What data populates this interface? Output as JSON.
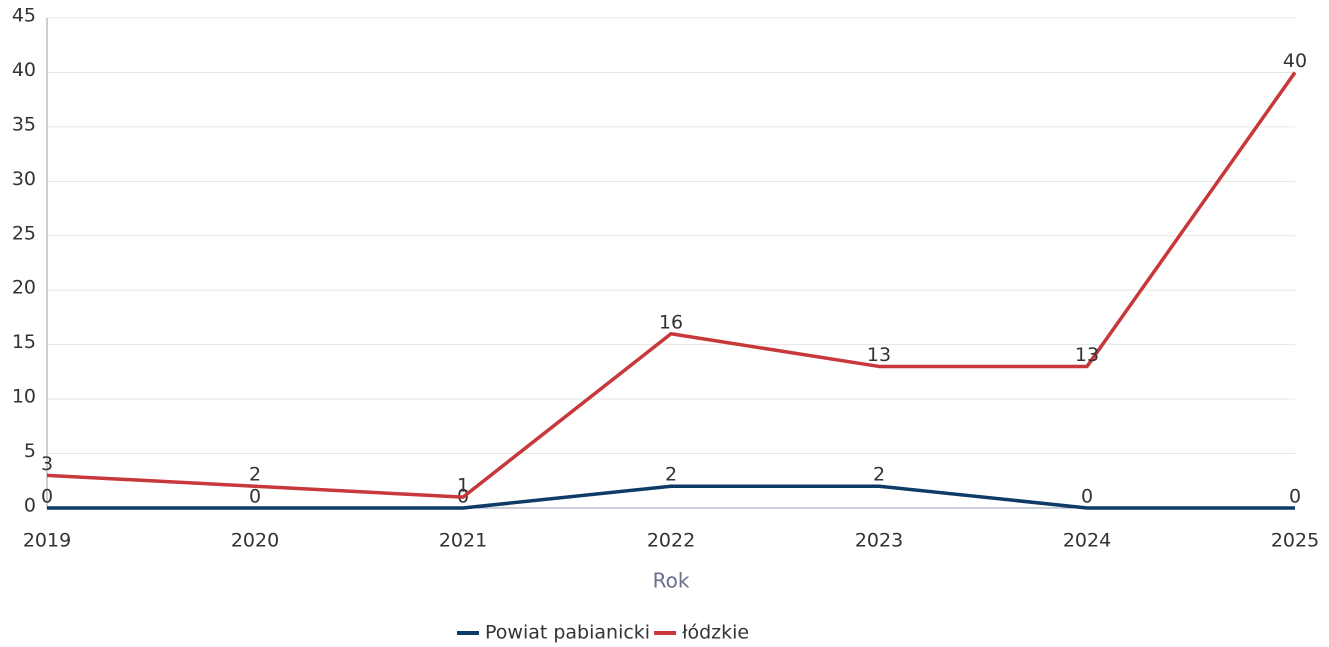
{
  "chart_data": {
    "type": "line",
    "x": [
      2019,
      2020,
      2021,
      2022,
      2023,
      2024,
      2025
    ],
    "xlim": [
      2019,
      2025
    ],
    "xticks": [
      2019,
      2020,
      2021,
      2022,
      2023,
      2024,
      2025
    ],
    "x_label": "Rok",
    "ylim": [
      0,
      45
    ],
    "yticks": [
      0,
      5,
      10,
      15,
      20,
      25,
      30,
      35,
      40,
      45
    ],
    "grid": true,
    "legend": "bottom",
    "series": [
      {
        "name": "Powiat pabianicki",
        "color": "#0d3b66",
        "values": [
          0,
          0,
          0,
          2,
          2,
          0,
          0
        ]
      },
      {
        "name": "łódzkie",
        "color": "#c8373a",
        "values": [
          3,
          2,
          1,
          16,
          13,
          13,
          40
        ]
      }
    ]
  }
}
